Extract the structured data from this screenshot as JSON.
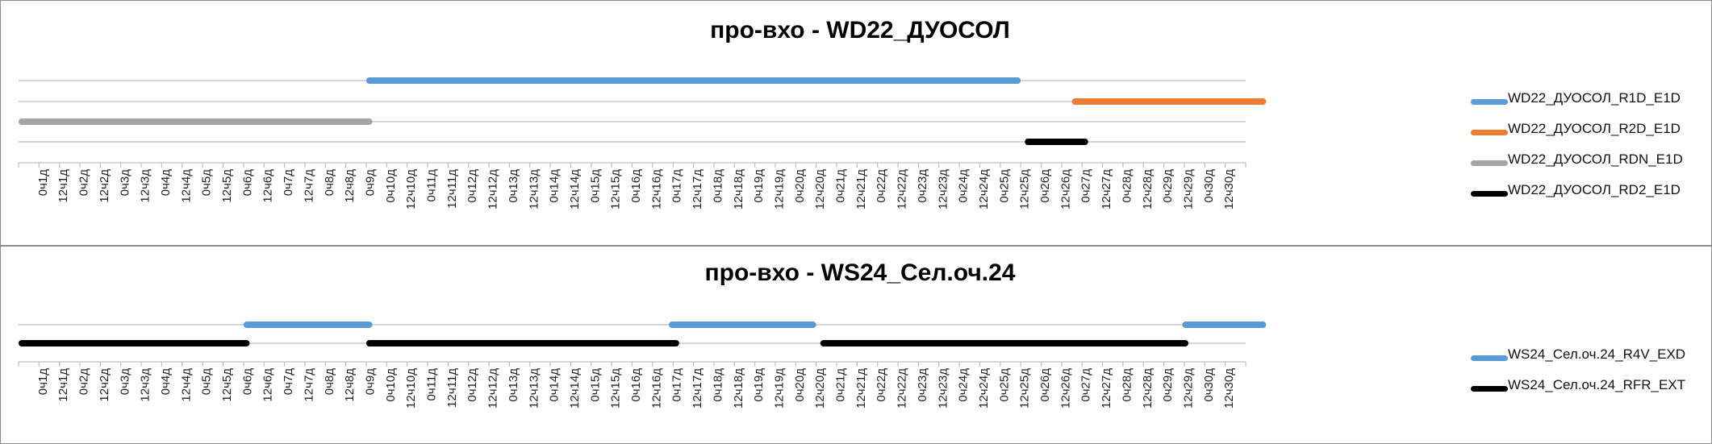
{
  "chart_data": [
    {
      "type": "timeline",
      "title": "про-вхо - WD22_ДУОСОЛ",
      "categories": [
        "0ч1д",
        "12ч1д",
        "0ч2д",
        "12ч2д",
        "0ч3д",
        "12ч3д",
        "0ч4д",
        "12ч4д",
        "0ч5д",
        "12ч5д",
        "0ч6д",
        "12ч6д",
        "0ч7д",
        "12ч7д",
        "0ч8д",
        "12ч8д",
        "0ч9д",
        "0ч10д",
        "12ч10д",
        "0ч11д",
        "12ч11д",
        "0ч12д",
        "12ч12д",
        "0ч13д",
        "12ч13д",
        "0ч14д",
        "12ч14д",
        "0ч15д",
        "12ч15д",
        "0ч16д",
        "12ч16д",
        "0ч17д",
        "12ч17д",
        "0ч18д",
        "12ч18д",
        "0ч19д",
        "12ч19д",
        "0ч20д",
        "12ч20д",
        "0ч21д",
        "12ч21д",
        "0ч22д",
        "12ч22д",
        "0ч23д",
        "12ч23д",
        "0ч24д",
        "12ч24д",
        "0ч25д",
        "12ч25д",
        "0ч26д",
        "12ч26д",
        "0ч27д",
        "12ч27д",
        "0ч28д",
        "12ч28д",
        "0ч29д",
        "12ч29д",
        "0ч30д",
        "12ч30д"
      ],
      "grid": true,
      "legend": "right",
      "series": [
        {
          "name": "WD22_ДУОСОЛ_R1D_E1D",
          "color": "#5b9bd5",
          "segments": [
            [
              17,
              49
            ]
          ]
        },
        {
          "name": "WD22_ДУОСОЛ_R2D_E1D",
          "color": "#ed7d31",
          "segments": [
            [
              51.5,
              61
            ]
          ]
        },
        {
          "name": "WD22_ДУОСОЛ_RDN_E1D",
          "color": "#a5a5a5",
          "segments": [
            [
              0,
              17.3
            ]
          ]
        },
        {
          "name": "WD22_ДУОСОЛ_RD2_E1D",
          "color": "#000000",
          "segments": [
            [
              49.2,
              52.3
            ]
          ]
        }
      ]
    },
    {
      "type": "timeline",
      "title": "про-вхо - WS24_Сел.оч.24",
      "categories": [
        "0ч1д",
        "12ч1д",
        "0ч2д",
        "12ч2д",
        "0ч3д",
        "12ч3д",
        "0ч4д",
        "12ч4д",
        "0ч5д",
        "12ч5д",
        "0ч6д",
        "12ч6д",
        "0ч7д",
        "12ч7д",
        "0ч8д",
        "12ч8д",
        "0ч9д",
        "0ч10д",
        "12ч10д",
        "0ч11д",
        "12ч11д",
        "0ч12д",
        "12ч12д",
        "0ч13д",
        "12ч13д",
        "0ч14д",
        "12ч14д",
        "0ч15д",
        "12ч15д",
        "0ч16д",
        "12ч16д",
        "0ч17д",
        "12ч17д",
        "0ч18д",
        "12ч18д",
        "0ч19д",
        "12ч19д",
        "0ч20д",
        "12ч20д",
        "0ч21д",
        "12ч21д",
        "0ч22д",
        "12ч22д",
        "0ч23д",
        "12ч23д",
        "0ч24д",
        "12ч24д",
        "0ч25д",
        "12ч25д",
        "0ч26д",
        "12ч26д",
        "0ч27д",
        "12ч27д",
        "0ч28д",
        "12ч28д",
        "0ч29д",
        "12ч29д",
        "0ч30д",
        "12ч30д"
      ],
      "grid": true,
      "legend": "right",
      "series": [
        {
          "name": "WS24_Сел.оч.24_R4V_EXD",
          "color": "#5b9bd5",
          "segments": [
            [
              11,
              17.3
            ],
            [
              31.8,
              39
            ],
            [
              56.9,
              61
            ]
          ]
        },
        {
          "name": "WS24_Сел.оч.24_RFR_EXT",
          "color": "#000000",
          "segments": [
            [
              0,
              11.3
            ],
            [
              17,
              32.3
            ],
            [
              39.2,
              57.2
            ]
          ]
        }
      ]
    }
  ]
}
